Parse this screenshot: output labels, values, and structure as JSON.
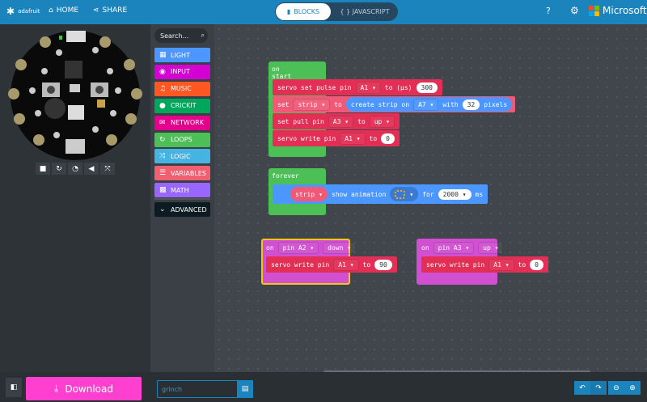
{
  "header": {
    "brand": "adafruit",
    "home": "HOME",
    "share": "SHARE",
    "mode_blocks": "BLOCKS",
    "mode_js": "{ } JAVASCRIPT",
    "microsoft": "Microsoft"
  },
  "toolbox": {
    "search_placeholder": "Search...",
    "categories": [
      {
        "label": "LIGHT",
        "color": "#4c97ff",
        "icon": "grid-icon"
      },
      {
        "label": "INPUT",
        "color": "#d400d4",
        "icon": "target-icon"
      },
      {
        "label": "MUSIC",
        "color": "#ff5722",
        "icon": "headphones-icon"
      },
      {
        "label": "CRICKIT",
        "color": "#00a65c",
        "icon": "circle-icon"
      },
      {
        "label": "NETWORK",
        "color": "#e3008c",
        "icon": "chat-icon"
      },
      {
        "label": "LOOPS",
        "color": "#4cbf56",
        "icon": "refresh-icon"
      },
      {
        "label": "LOGIC",
        "color": "#45b4e3",
        "icon": "shuffle-icon"
      },
      {
        "label": "VARIABLES",
        "color": "#f06070",
        "icon": "list-icon"
      },
      {
        "label": "MATH",
        "color": "#9966ff",
        "icon": "calculator-icon"
      }
    ],
    "advanced": "ADVANCED"
  },
  "blocks": {
    "on_start": {
      "label": "on start",
      "s1": [
        "servo set pulse pin",
        "A1",
        "to (µs)",
        "300"
      ],
      "s2": [
        "set",
        "strip",
        "to",
        "create strip on",
        "A7",
        "with",
        "32",
        "pixels"
      ],
      "s3": [
        "set pull pin",
        "A3",
        "to",
        "up"
      ],
      "s4": [
        "servo write pin",
        "A1",
        "to",
        "0"
      ]
    },
    "forever": {
      "label": "forever",
      "s1": [
        "strip",
        "show animation",
        "for",
        "2000",
        "ms"
      ]
    },
    "on_a2": {
      "on": "on",
      "pin": "pin A2",
      "evt": "down",
      "s1": [
        "servo write pin",
        "A1",
        "to",
        "90"
      ]
    },
    "on_a3": {
      "on": "on",
      "pin": "pin A3",
      "evt": "up",
      "s1": [
        "servo write pin",
        "A1",
        "to",
        "0"
      ]
    }
  },
  "bottom": {
    "download": "Download",
    "project_name": "grinch"
  }
}
